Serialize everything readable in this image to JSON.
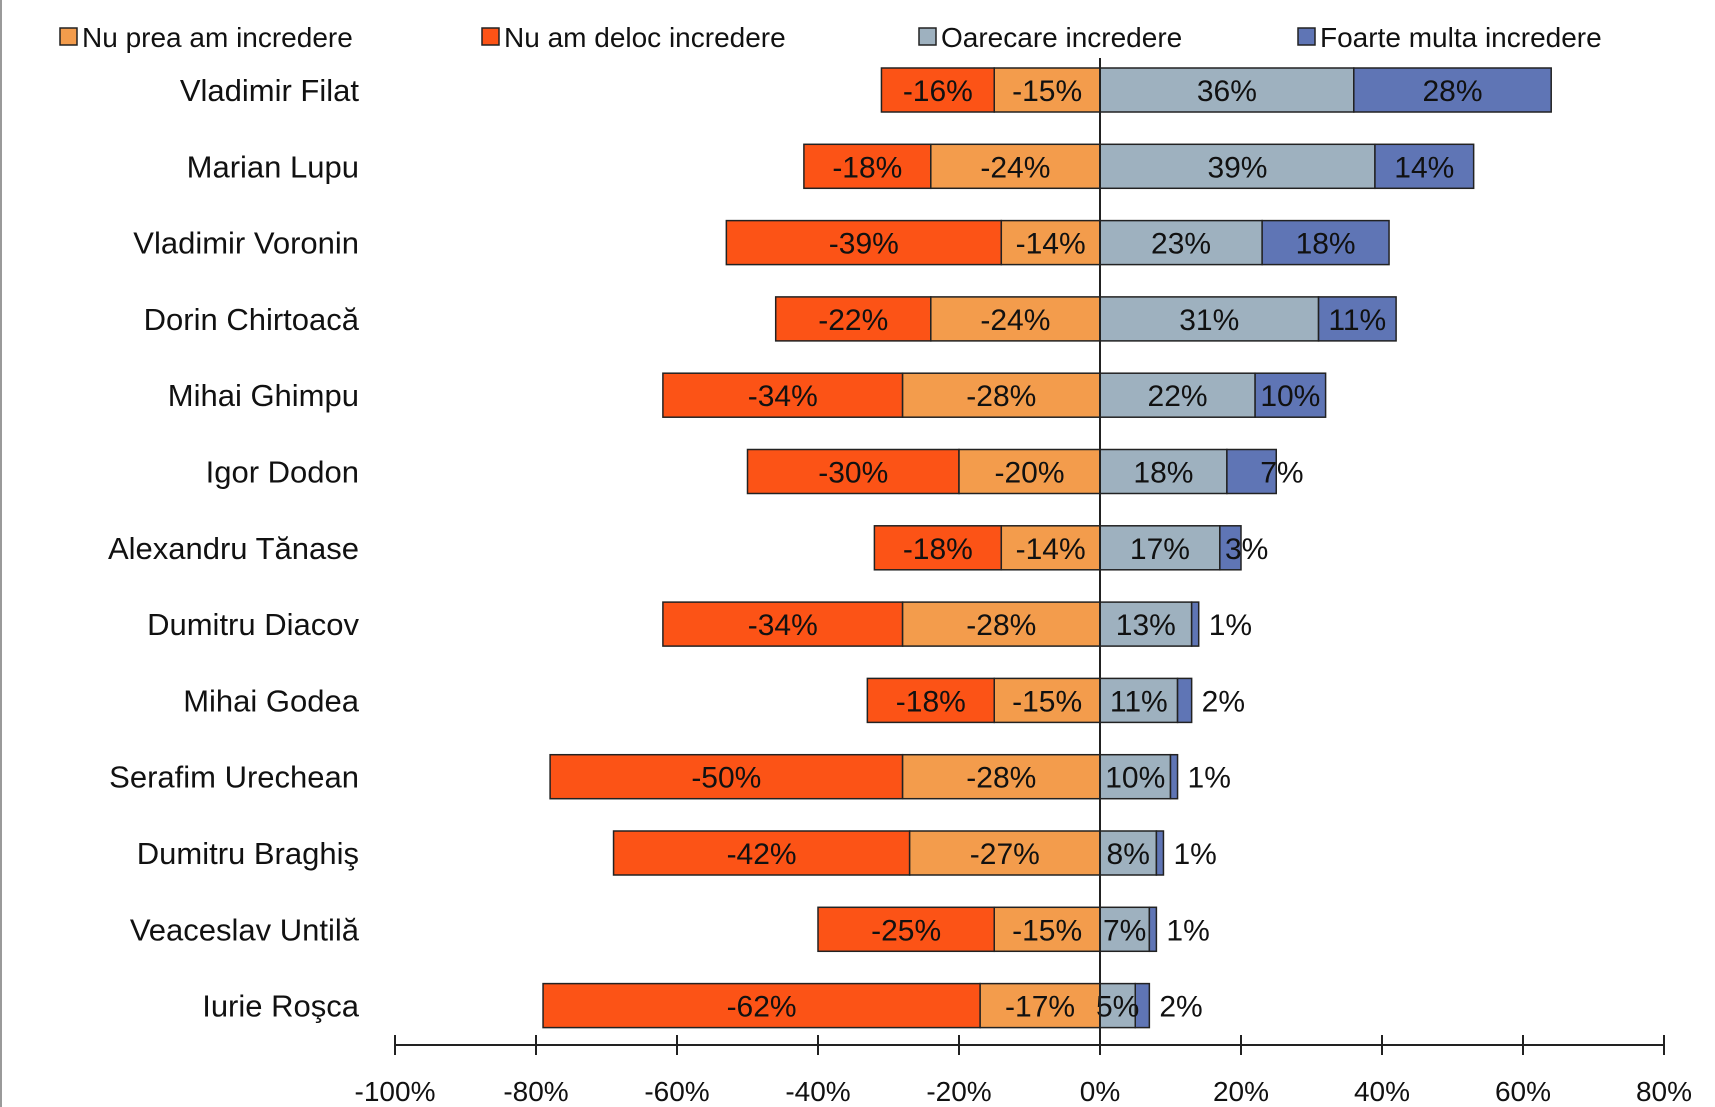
{
  "colors": {
    "Nu prea am incredere": "#f39c4c",
    "Nu am deloc incredere": "#fc5316",
    "Oarecare incredere": "#9eb1bf",
    "Foarte multa incredere": "#5f75b5",
    "bar_outline": "#222222",
    "axis": "#222222"
  },
  "chart_data": {
    "type": "bar",
    "orientation": "horizontal",
    "stacking": "diverging",
    "legend_position": "top",
    "legend_order": [
      "Nu prea am incredere",
      "Nu am deloc incredere",
      "Oarecare incredere",
      "Foarte multa incredere"
    ],
    "categories": [
      "Vladimir Filat",
      "Marian Lupu",
      "Vladimir Voronin",
      "Dorin Chirtoacă",
      "Mihai Ghimpu",
      "Igor Dodon",
      "Alexandru Tănase",
      "Dumitru Diacov",
      "Mihai Godea",
      "Serafim Urechean",
      "Dumitru Braghiş",
      "Veaceslav Untilă",
      "Iurie Roşca"
    ],
    "series": [
      {
        "name": "Nu am deloc incredere",
        "values": [
          -16,
          -18,
          -39,
          -22,
          -34,
          -30,
          -18,
          -34,
          -18,
          -50,
          -42,
          -25,
          -62
        ]
      },
      {
        "name": "Nu prea am incredere",
        "values": [
          -15,
          -24,
          -14,
          -24,
          -28,
          -20,
          -14,
          -28,
          -15,
          -28,
          -27,
          -15,
          -17
        ]
      },
      {
        "name": "Oarecare incredere",
        "values": [
          36,
          39,
          23,
          31,
          22,
          18,
          17,
          13,
          11,
          10,
          8,
          7,
          5
        ]
      },
      {
        "name": "Foarte multa incredere",
        "values": [
          28,
          14,
          18,
          11,
          10,
          7,
          3,
          1,
          2,
          1,
          1,
          1,
          2
        ]
      }
    ],
    "data_labels": {
      "Nu am deloc incredere": [
        "-16%",
        "-18%",
        "-39%",
        "-22%",
        "-34%",
        "-30%",
        "-18%",
        "-34%",
        "-18%",
        "-50%",
        "-42%",
        "-25%",
        "-62%"
      ],
      "Nu prea am incredere": [
        "-15%",
        "-24%",
        "-14%",
        "-24%",
        "-28%",
        "-20%",
        "-14%",
        "-28%",
        "-15%",
        "-28%",
        "-27%",
        "-15%",
        "-17%"
      ],
      "Oarecare incredere": [
        "36%",
        "39%",
        "23%",
        "31%",
        "22%",
        "18%",
        "17%",
        "13%",
        "11%",
        "10%",
        "8%",
        "7%",
        "5%"
      ],
      "Foarte multa incredere": [
        "28%",
        "14%",
        "18%",
        "11%",
        "10%",
        "7%",
        "3%",
        "1%",
        "2%",
        "1%",
        "1%",
        "1%",
        "2%"
      ]
    },
    "xlim": [
      -100,
      80
    ],
    "xticks": [
      -100,
      -80,
      -60,
      -40,
      -20,
      0,
      20,
      40,
      60,
      80
    ],
    "xtick_labels": [
      "-100%",
      "-80%",
      "-60%",
      "-40%",
      "-20%",
      "0%",
      "20%",
      "40%",
      "60%",
      "80%"
    ],
    "title": "",
    "xlabel": "",
    "ylabel": "",
    "grid": false
  }
}
